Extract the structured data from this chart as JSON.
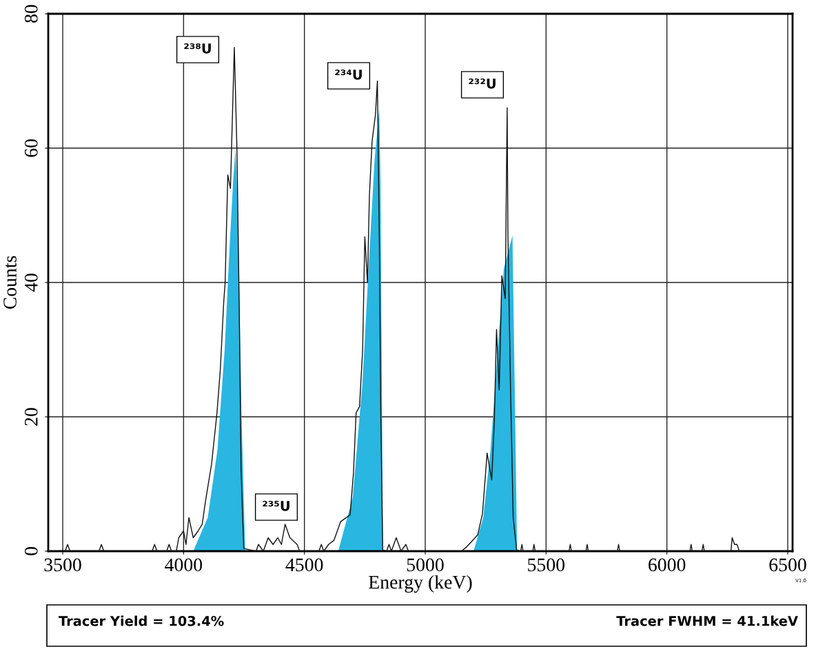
{
  "chart_data": {
    "type": "line",
    "xlabel": "Energy (keV)",
    "ylabel": "Counts",
    "xlim": [
      3440,
      6520
    ],
    "ylim": [
      0,
      80
    ],
    "xticks": [
      3500,
      4000,
      4500,
      5000,
      5500,
      6000,
      6500
    ],
    "yticks": [
      0,
      20,
      40,
      60,
      80
    ],
    "grid": true,
    "series": [
      {
        "type": "area",
        "color": "#29b6e0",
        "x": [
          4040,
          4100,
          4140,
          4170,
          4190,
          4205,
          4215,
          4225,
          4240,
          4255,
          4640,
          4700,
          4740,
          4770,
          4790,
          4810,
          4815,
          4825,
          5200,
          5240,
          5270,
          5300,
          5325,
          5361,
          5370,
          5380
        ],
        "values": [
          0,
          5,
          15,
          30,
          45,
          55,
          60,
          50,
          20,
          0,
          0,
          8,
          25,
          45,
          58,
          66,
          55,
          0,
          0,
          5,
          15,
          30,
          42,
          47,
          25,
          0
        ]
      },
      {
        "color": "#111111",
        "x": [
          3510,
          3520,
          3530,
          3650,
          3660,
          3670,
          3870,
          3880,
          3890,
          3930,
          3940,
          3950,
          3970,
          3980,
          4000,
          4010,
          4022,
          4040,
          4060,
          4077,
          4091,
          4116,
          4138,
          4152,
          4166,
          4172,
          4183,
          4194,
          4202,
          4210,
          4221,
          4230,
          4238,
          4249,
          4300,
          4310,
          4330,
          4350,
          4370,
          4390,
          4405,
          4420,
          4440,
          4470,
          4480,
          4560,
          4570,
          4580,
          4600,
          4622,
          4650,
          4689,
          4703,
          4714,
          4728,
          4741,
          4750,
          4761,
          4769,
          4780,
          4794,
          4802,
          4810,
          4816,
          4824,
          4840,
          4850,
          4860,
          4880,
          4900,
          4920,
          4930,
          5150,
          5170,
          5217,
          5237,
          5256,
          5275,
          5286,
          5295,
          5306,
          5317,
          5331,
          5339,
          5342,
          5353,
          5364,
          5378,
          5395,
          5400,
          5405,
          5445,
          5450,
          5455,
          5595,
          5600,
          5605,
          5665,
          5670,
          5675,
          5795,
          5800,
          5805,
          6095,
          6100,
          6105,
          6145,
          6150,
          6155,
          6265,
          6270,
          6280,
          6290,
          6300
        ],
        "values": [
          0,
          1,
          0,
          0,
          1,
          0,
          0,
          1,
          0,
          0,
          1,
          0,
          0,
          2,
          3,
          1,
          5,
          2,
          3,
          4,
          7.5,
          13,
          20.5,
          27,
          37,
          40,
          56,
          54,
          64.6,
          75,
          59.5,
          37,
          12,
          0.4,
          0,
          1,
          0,
          2,
          1,
          2,
          1,
          4,
          2,
          1,
          0,
          0,
          1,
          0,
          1,
          1.6,
          4.4,
          5.4,
          11.6,
          20.6,
          21.5,
          30,
          46.8,
          40,
          53,
          61,
          65,
          70,
          46.8,
          20.6,
          0.2,
          0,
          1,
          0,
          2,
          0,
          1,
          0,
          0,
          0.6,
          2.4,
          5.6,
          14.6,
          10.6,
          19.5,
          33,
          24,
          41,
          37.6,
          66,
          47.5,
          24,
          5,
          0.2,
          0,
          1,
          0,
          0,
          1,
          0,
          0,
          1,
          0,
          0,
          1,
          0,
          0,
          1,
          0,
          0,
          1,
          0,
          0,
          1,
          0,
          0,
          2,
          1,
          1,
          0
        ]
      }
    ],
    "annotations": [
      "²³⁸U",
      "²³⁴U",
      "²³²U",
      "²³⁵U",
      "V1.0",
      "Tracer Yield = 103.4%",
      "Tracer FWHM = 41.1keV"
    ]
  }
}
